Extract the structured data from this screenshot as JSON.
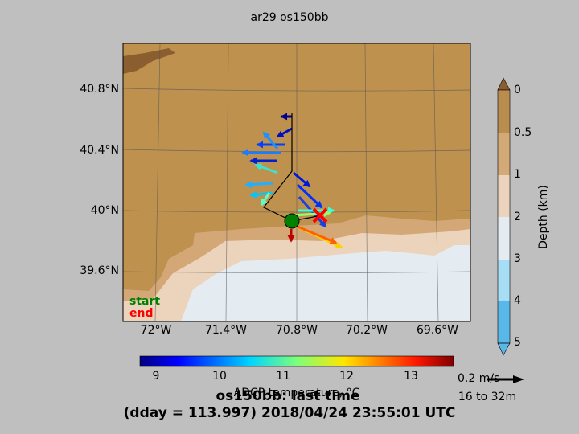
{
  "title": "ar29 os150bb",
  "map": {
    "lat_labels": [
      "40.8°N",
      "40.4°N",
      "40°N",
      "39.6°N"
    ],
    "lon_labels": [
      "72°W",
      "71.4°W",
      "70.8°W",
      "70.2°W",
      "69.6°W"
    ],
    "start_label": "start",
    "end_label": "end"
  },
  "depth_colorbar": {
    "ticks": [
      "0",
      "0.5",
      "1",
      "2",
      "3",
      "4",
      "5"
    ],
    "label": "Depth (km)"
  },
  "temperature_colorbar": {
    "ticks": [
      "9",
      "10",
      "11",
      "12",
      "13"
    ],
    "label": "ADCP temperature, °C"
  },
  "scale": {
    "speed": "0.2 m/s",
    "depth_range": "16 to 32m"
  },
  "footer": {
    "line1": "os150bb: last time",
    "line2": "(dday = 113.997) 2018/04/24 23:55:01 UTC"
  }
}
